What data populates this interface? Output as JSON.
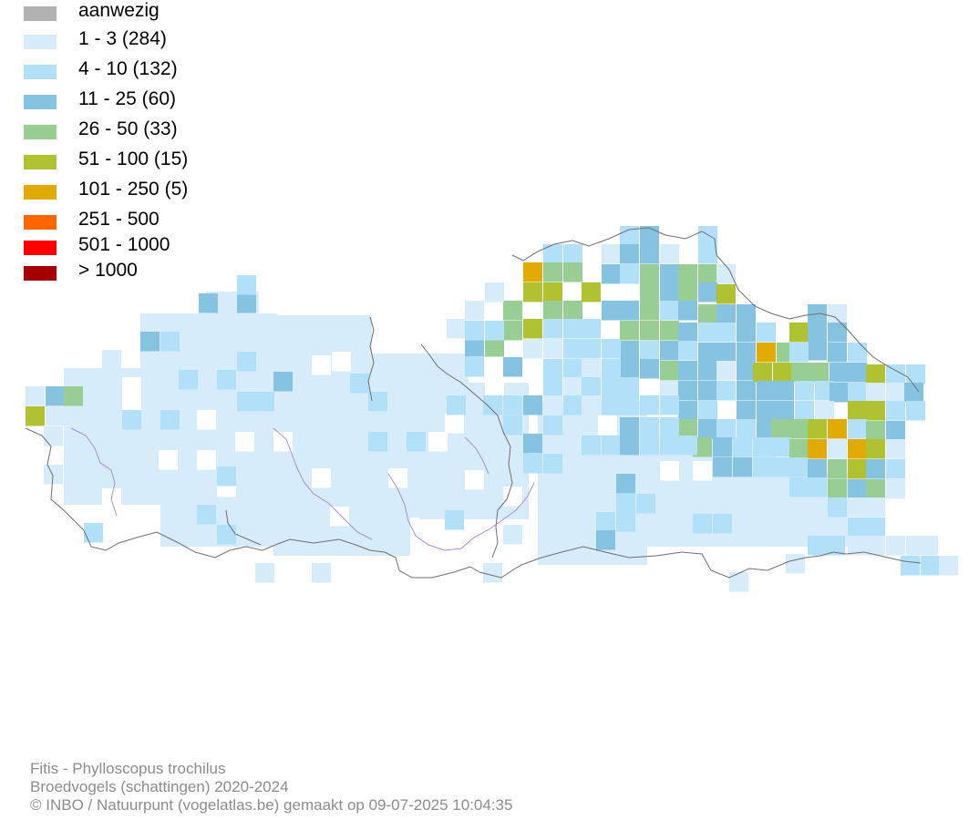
{
  "legend": {
    "items": [
      {
        "label": "aanwezig",
        "color": "#b2b2b2"
      },
      {
        "label": "1 - 3 (284)",
        "color": "#d6ecfa"
      },
      {
        "label": "4 - 10 (132)",
        "color": "#b1e0f8"
      },
      {
        "label": "11 - 25 (60)",
        "color": "#86c3e0"
      },
      {
        "label": "26 - 50 (33)",
        "color": "#98cd94"
      },
      {
        "label": "51 - 100 (15)",
        "color": "#b0c131"
      },
      {
        "label": "101 - 250 (5)",
        "color": "#e0ab05"
      },
      {
        "label": "251 - 500",
        "color": "#ff6600"
      },
      {
        "label": "501 - 1000",
        "color": "#ff0000"
      },
      {
        "label": "> 1000",
        "color": "#a50000"
      }
    ]
  },
  "credits": {
    "species": "Fitis - Phylloscopus trochilus",
    "dataset": "Broedvogels (schattingen) 2020-2024",
    "copyright": "© INBO / Natuurpunt (vogelatlas.be) gemaakt op 09-07-2025 10:04:35"
  }
}
